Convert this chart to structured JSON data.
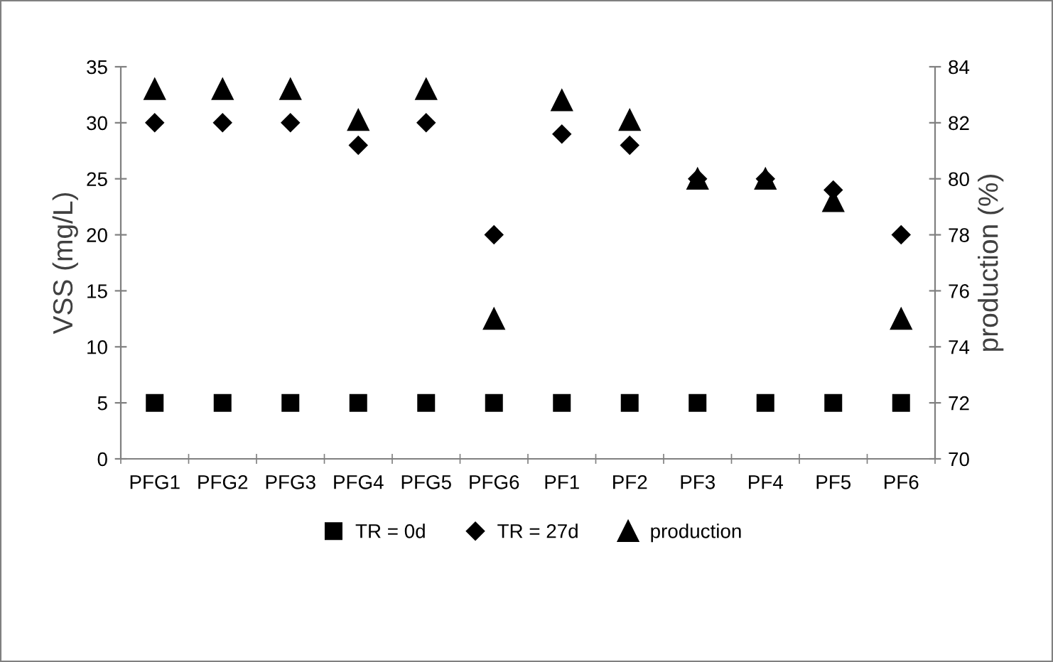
{
  "chart_data": {
    "type": "scatter",
    "ylabel": "VSS (mg/L)",
    "y2label": "production (%)",
    "categories": [
      "PFG1",
      "PFG2",
      "PFG3",
      "PFG4",
      "PFG5",
      "PFG6",
      "PF1",
      "PF2",
      "PF3",
      "PF4",
      "PF5",
      "PF6"
    ],
    "series": [
      {
        "name": "TR = 0d",
        "color": "#000000",
        "marker": "square",
        "values": [
          5,
          5,
          5,
          5,
          5,
          5,
          5,
          5,
          5,
          5,
          5,
          5
        ]
      },
      {
        "name": "TR = 27d",
        "color": "#000000",
        "marker": "diamond",
        "values": [
          30,
          30,
          30,
          28,
          30,
          20,
          29,
          28,
          25,
          25,
          24,
          20
        ]
      },
      {
        "name": "production",
        "color": "#000000",
        "marker": "triangle",
        "axis": "y2",
        "values": [
          83.2,
          83.2,
          83.2,
          82.1,
          83.2,
          75,
          82.8,
          82.1,
          80,
          80,
          79.2,
          75
        ]
      }
    ],
    "ylim": [
      0,
      35
    ],
    "yticks": [
      0,
      5,
      10,
      15,
      20,
      25,
      30,
      35
    ],
    "y2lim": [
      70,
      84
    ],
    "y2ticks": [
      70,
      72,
      74,
      76,
      78,
      80,
      82,
      84
    ],
    "grid": false,
    "legend": "bottom"
  }
}
